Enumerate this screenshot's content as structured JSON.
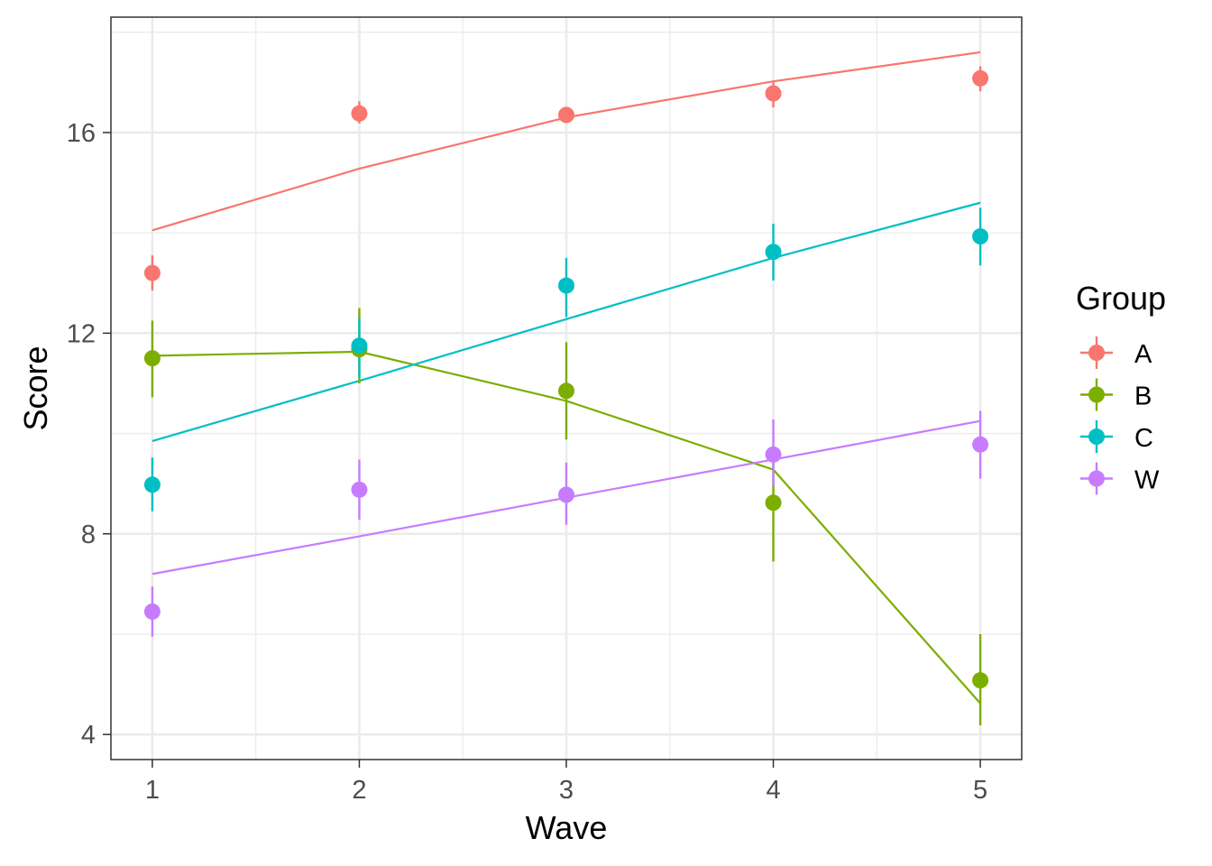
{
  "chart_data": {
    "type": "line",
    "xlabel": "Wave",
    "ylabel": "Score",
    "x": [
      1,
      2,
      3,
      4,
      5
    ],
    "xlim": [
      0.8,
      5.2
    ],
    "ylim": [
      3.5,
      18.3
    ],
    "x_ticks": [
      1,
      2,
      3,
      4,
      5
    ],
    "y_ticks": [
      4,
      8,
      12,
      16
    ],
    "grid": true,
    "legend": {
      "title": "Group",
      "position": "right"
    },
    "series": [
      {
        "name": "A",
        "color": "#F8766D",
        "points": [
          13.2,
          16.38,
          16.35,
          16.78,
          17.08
        ],
        "err_low": [
          12.85,
          16.18,
          16.2,
          16.5,
          16.82
        ],
        "err_high": [
          13.55,
          16.62,
          16.5,
          17.02,
          17.32
        ],
        "fit": [
          14.05,
          15.28,
          16.3,
          17.02,
          17.6
        ]
      },
      {
        "name": "B",
        "color": "#7CAE00",
        "points": [
          11.5,
          11.68,
          10.85,
          8.62,
          5.08
        ],
        "err_low": [
          10.72,
          11.0,
          9.88,
          7.45,
          4.18
        ],
        "err_high": [
          12.25,
          12.5,
          11.82,
          9.58,
          6.0
        ],
        "fit": [
          11.55,
          11.63,
          10.65,
          9.28,
          4.62
        ]
      },
      {
        "name": "C",
        "color": "#00BFC4",
        "points": [
          8.98,
          11.75,
          12.95,
          13.62,
          13.93
        ],
        "err_low": [
          8.45,
          11.12,
          12.32,
          13.05,
          13.35
        ],
        "err_high": [
          9.52,
          12.3,
          13.5,
          14.18,
          14.5
        ],
        "fit": [
          9.85,
          11.05,
          12.28,
          13.5,
          14.6
        ]
      },
      {
        "name": "W",
        "color": "#C77CFF",
        "points": [
          6.45,
          8.88,
          8.78,
          9.58,
          9.78
        ],
        "err_low": [
          5.95,
          8.28,
          8.18,
          8.95,
          9.1
        ],
        "err_high": [
          6.95,
          9.48,
          9.42,
          10.28,
          10.45
        ],
        "fit": [
          7.2,
          7.95,
          8.72,
          9.48,
          10.25
        ]
      }
    ]
  }
}
